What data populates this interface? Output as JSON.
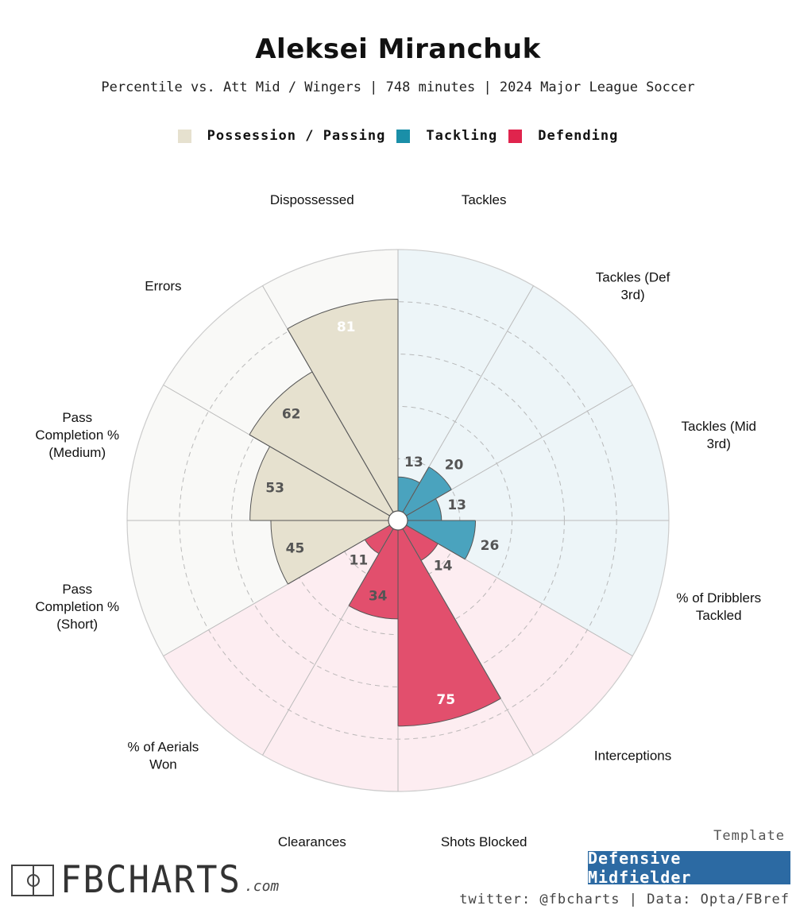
{
  "title": "Aleksei Miranchuk",
  "subtitle": "Percentile vs. Att Mid / Wingers | 748 minutes | 2024 Major League Soccer",
  "legend": [
    {
      "label": "Possession / Passing",
      "color": "#e6e1cf"
    },
    {
      "label": "Tackling",
      "color": "#1a8fa8"
    },
    {
      "label": "Defending",
      "color": "#e0244d"
    }
  ],
  "chart_data": {
    "type": "radar-bar",
    "title": "Aleksei Miranchuk",
    "range": [
      0,
      100
    ],
    "grid_rings": [
      20,
      40,
      60,
      80
    ],
    "categories": [
      {
        "label": [
          "Tackles"
        ],
        "value": 13,
        "group": "Tackling"
      },
      {
        "label": [
          "Tackles (Def",
          "3rd)"
        ],
        "value": 20,
        "group": "Tackling"
      },
      {
        "label": [
          "Tackles (Mid",
          "3rd)"
        ],
        "value": 13,
        "group": "Tackling"
      },
      {
        "label": [
          "% of Dribblers",
          "Tackled"
        ],
        "value": 26,
        "group": "Tackling"
      },
      {
        "label": [
          "Interceptions"
        ],
        "value": 14,
        "group": "Defending"
      },
      {
        "label": [
          "Shots Blocked"
        ],
        "value": 75,
        "group": "Defending"
      },
      {
        "label": [
          "Clearances"
        ],
        "value": 34,
        "group": "Defending"
      },
      {
        "label": [
          "% of Aerials",
          "Won"
        ],
        "value": 11,
        "group": "Defending"
      },
      {
        "label": [
          "Pass",
          "Completion %",
          "(Short)"
        ],
        "value": 45,
        "group": "Possession / Passing"
      },
      {
        "label": [
          "Pass",
          "Completion %",
          "(Medium)"
        ],
        "value": 53,
        "group": "Possession / Passing"
      },
      {
        "label": [
          "Errors"
        ],
        "value": 62,
        "group": "Possession / Passing"
      },
      {
        "label": [
          "Dispossessed"
        ],
        "value": 81,
        "group": "Possession / Passing"
      }
    ],
    "group_colors": {
      "Tackling": {
        "bar": "#4aa3be",
        "bg": "#edf5f8",
        "text": "#555555"
      },
      "Defending": {
        "bar": "#e24f6d",
        "bg": "#fdedf1",
        "text": "#555555"
      },
      "Possession / Passing": {
        "bar": "#e6e1cf",
        "bg": "#f9f9f7",
        "text": "#555555"
      }
    },
    "highlight_label_color": "#ffffff"
  },
  "footer": {
    "template_label": "Template",
    "template_value": "Defensive Midfielder",
    "credits": "twitter: @fbcharts | Data: Opta/FBref",
    "logo_text": "FBCHARTS",
    "logo_suffix": ".com"
  }
}
